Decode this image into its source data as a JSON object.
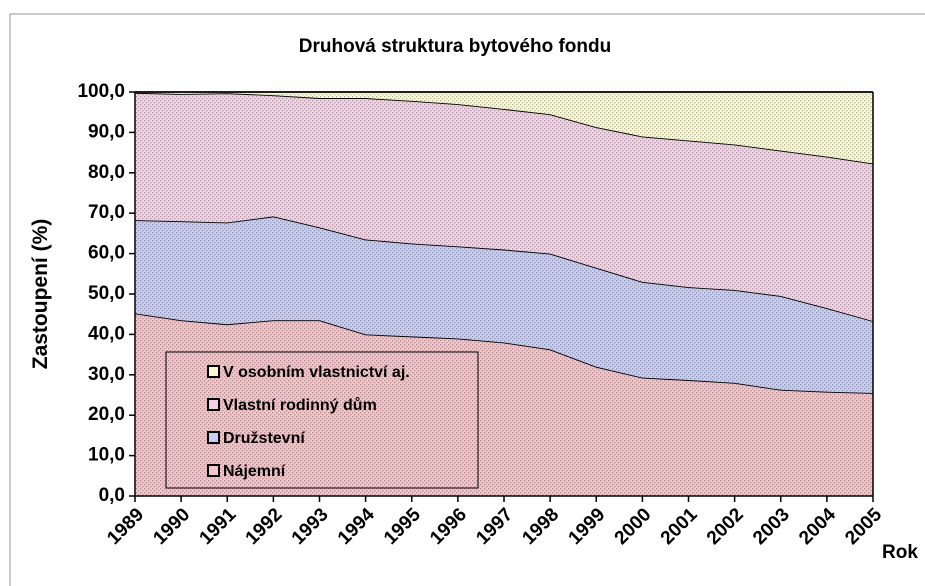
{
  "chart_data": {
    "type": "stacked_area",
    "title": "Druhová struktura bytového fondu",
    "y_label": "Zastoupení (%)",
    "x_label": "Rok",
    "categories": [
      "1989",
      "1990",
      "1991",
      "1992",
      "1993",
      "1994",
      "1995",
      "1996",
      "1997",
      "1998",
      "1999",
      "2000",
      "2001",
      "2002",
      "2003",
      "2004",
      "2005"
    ],
    "series": [
      {
        "name": "Nájemní",
        "color": "#f4c4c8",
        "values": [
          45.2,
          43.5,
          42.5,
          43.5,
          43.5,
          40,
          39.5,
          39,
          38,
          36.3,
          32,
          29.3,
          28.7,
          28,
          26.3,
          25.8,
          25.5
        ]
      },
      {
        "name": "Družstevní",
        "color": "#c8cdf4",
        "values": [
          23.1,
          24.5,
          25.2,
          25.7,
          23,
          23.5,
          23,
          22.8,
          23,
          23.7,
          24.5,
          23.7,
          23,
          23,
          23.2,
          20.7,
          17.8
        ]
      },
      {
        "name": "Vlastní rodinný dům",
        "color": "#f2d2e4",
        "values": [
          31.5,
          31.5,
          32,
          30,
          32,
          35,
          35.3,
          35.2,
          34.8,
          34.5,
          34.8,
          36,
          36.3,
          36,
          36,
          37.5,
          39
        ]
      },
      {
        "name": "V osobním vlastnictví aj.",
        "color": "#fafad2",
        "values": [
          0.2,
          0.5,
          0.3,
          0.8,
          1.5,
          1.5,
          2.2,
          3,
          4.2,
          5.5,
          8.7,
          11,
          12,
          13,
          14.5,
          16,
          17.7
        ]
      }
    ],
    "ylim": [
      0,
      100
    ],
    "yticks": [
      {
        "value": 0,
        "label": "0,0"
      },
      {
        "value": 10,
        "label": "10,0"
      },
      {
        "value": 20,
        "label": "20,0"
      },
      {
        "value": 30,
        "label": "30,0"
      },
      {
        "value": 40,
        "label": "40,0"
      },
      {
        "value": 50,
        "label": "50,0"
      },
      {
        "value": 60,
        "label": "60,0"
      },
      {
        "value": 70,
        "label": "70,0"
      },
      {
        "value": 80,
        "label": "80,0"
      },
      {
        "value": 90,
        "label": "90,0"
      },
      {
        "value": 100,
        "label": "100,0"
      }
    ]
  }
}
